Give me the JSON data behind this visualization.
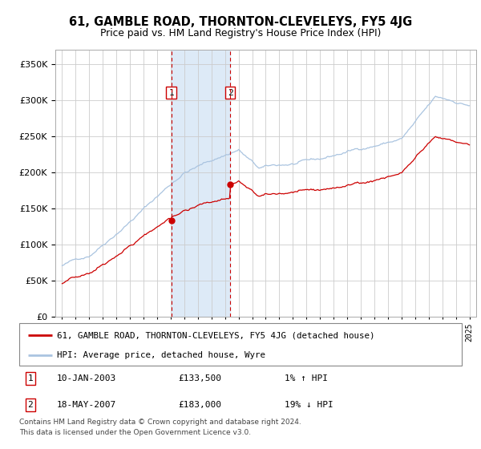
{
  "title": "61, GAMBLE ROAD, THORNTON-CLEVELEYS, FY5 4JG",
  "subtitle": "Price paid vs. HM Land Registry's House Price Index (HPI)",
  "legend_line1": "61, GAMBLE ROAD, THORNTON-CLEVELEYS, FY5 4JG (detached house)",
  "legend_line2": "HPI: Average price, detached house, Wyre",
  "purchase1_date": "10-JAN-2003",
  "purchase1_price": 133500,
  "purchase1_label": "1% ↑ HPI",
  "purchase2_date": "18-MAY-2007",
  "purchase2_price": 183000,
  "purchase2_label": "19% ↓ HPI",
  "footnote1": "Contains HM Land Registry data © Crown copyright and database right 2024.",
  "footnote2": "This data is licensed under the Open Government Licence v3.0.",
  "hpi_color": "#aac4e0",
  "price_color": "#cc0000",
  "shade_color": "#ddeaf7",
  "grid_color": "#cccccc",
  "purchase1_year": 2003.04,
  "purchase2_year": 2007.38,
  "ylim": [
    0,
    370000
  ],
  "yticks": [
    0,
    50000,
    100000,
    150000,
    200000,
    250000,
    300000,
    350000
  ],
  "xmin": 1994.5,
  "xmax": 2025.5
}
